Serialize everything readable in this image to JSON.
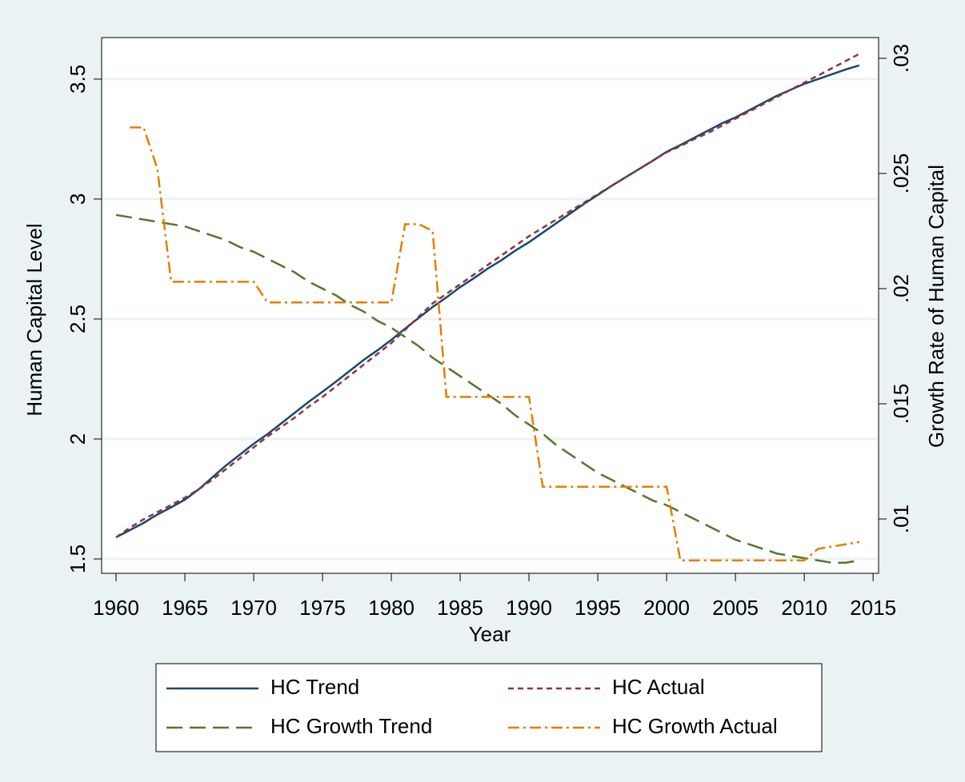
{
  "chart_data": {
    "type": "line",
    "x_label": "Year",
    "y_label": "Human  Capital  Level",
    "y2_label": "Growth  Rate of Human  Capital",
    "x": [
      1960,
      1961,
      1962,
      1963,
      1964,
      1965,
      1966,
      1967,
      1968,
      1969,
      1970,
      1971,
      1972,
      1973,
      1974,
      1975,
      1976,
      1977,
      1978,
      1979,
      1980,
      1981,
      1982,
      1983,
      1984,
      1985,
      1986,
      1987,
      1988,
      1989,
      1990,
      1991,
      1992,
      1993,
      1994,
      1995,
      1996,
      1997,
      1998,
      1999,
      2000,
      2001,
      2002,
      2003,
      2004,
      2005,
      2006,
      2007,
      2008,
      2009,
      2010,
      2011,
      2012,
      2013,
      2014
    ],
    "series": [
      {
        "name": "HC Trend",
        "color": "#1a476f",
        "dash": "solid",
        "axis": "y",
        "values": [
          1.59,
          1.62,
          1.65,
          1.685,
          1.715,
          1.747,
          1.79,
          1.84,
          1.89,
          1.935,
          1.98,
          2.02,
          2.065,
          2.11,
          2.155,
          2.197,
          2.24,
          2.285,
          2.33,
          2.37,
          2.413,
          2.46,
          2.505,
          2.55,
          2.59,
          2.633,
          2.67,
          2.71,
          2.745,
          2.785,
          2.82,
          2.86,
          2.9,
          2.94,
          2.98,
          3.017,
          3.055,
          3.09,
          3.125,
          3.16,
          3.197,
          3.225,
          3.255,
          3.285,
          3.315,
          3.34,
          3.37,
          3.4,
          3.43,
          3.455,
          3.48,
          3.5,
          3.52,
          3.54,
          3.557
        ]
      },
      {
        "name": "HC Actual",
        "color": "#90353b",
        "dash": "short",
        "axis": "y",
        "values": [
          1.59,
          1.63,
          1.665,
          1.695,
          1.725,
          1.755,
          1.79,
          1.83,
          1.875,
          1.92,
          1.965,
          2.01,
          2.05,
          2.09,
          2.135,
          2.175,
          2.22,
          2.265,
          2.31,
          2.355,
          2.4,
          2.455,
          2.51,
          2.565,
          2.605,
          2.645,
          2.685,
          2.725,
          2.765,
          2.805,
          2.845,
          2.88,
          2.915,
          2.95,
          2.985,
          3.02,
          3.055,
          3.09,
          3.125,
          3.16,
          3.195,
          3.22,
          3.25,
          3.275,
          3.305,
          3.335,
          3.365,
          3.395,
          3.425,
          3.455,
          3.485,
          3.515,
          3.545,
          3.575,
          3.605
        ]
      },
      {
        "name": "HC Growth Trend",
        "color": "#55752f",
        "dash": "long",
        "axis": "y2",
        "values": [
          0.0232,
          0.0231,
          0.023,
          0.0229,
          0.0228,
          0.0227,
          0.0225,
          0.0223,
          0.0221,
          0.0218,
          0.0216,
          0.0213,
          0.021,
          0.0207,
          0.0203,
          0.02,
          0.0197,
          0.0193,
          0.019,
          0.0186,
          0.0183,
          0.0179,
          0.0175,
          0.017,
          0.0166,
          0.0162,
          0.0158,
          0.0154,
          0.015,
          0.0145,
          0.0141,
          0.0137,
          0.0132,
          0.0128,
          0.0124,
          0.012,
          0.0117,
          0.0114,
          0.0111,
          0.0108,
          0.0106,
          0.0103,
          0.01,
          0.0097,
          0.0094,
          0.0091,
          0.0089,
          0.0087,
          0.0085,
          0.0084,
          0.0083,
          0.0082,
          0.0081,
          0.0081,
          0.0082
        ]
      },
      {
        "name": "HC Growth Actual",
        "color": "#e37e00",
        "dash": "dashdot",
        "axis": "y2",
        "values": [
          null,
          0.027,
          0.027,
          0.0252,
          0.0203,
          0.0203,
          0.0203,
          0.0203,
          0.0203,
          0.0203,
          0.0203,
          0.0194,
          0.0194,
          0.0194,
          0.0194,
          0.0194,
          0.0194,
          0.0194,
          0.0194,
          0.0194,
          0.0194,
          0.0228,
          0.0228,
          0.0225,
          0.0153,
          0.0153,
          0.0153,
          0.0153,
          0.0153,
          0.0153,
          0.0153,
          0.0114,
          0.0114,
          0.0114,
          0.0114,
          0.0114,
          0.0114,
          0.0114,
          0.0114,
          0.0114,
          0.0114,
          0.0082,
          0.0082,
          0.0082,
          0.0082,
          0.0082,
          0.0082,
          0.0082,
          0.0082,
          0.0082,
          0.0082,
          0.0087,
          0.0088,
          0.0089,
          0.009
        ]
      }
    ],
    "xlim": [
      1958.95,
      2015.4
    ],
    "xticks": [
      1960,
      1965,
      1970,
      1975,
      1980,
      1985,
      1990,
      1995,
      2000,
      2005,
      2010,
      2015
    ],
    "ylim": [
      1.44,
      3.673
    ],
    "yticks": [
      1.5,
      2,
      2.5,
      3,
      3.5
    ],
    "y2lim": [
      0.00764,
      0.0309
    ],
    "y2ticks": [
      {
        "value": 0.01,
        "label": ".01"
      },
      {
        "value": 0.015,
        "label": ".015"
      },
      {
        "value": 0.02,
        "label": ".02"
      },
      {
        "value": 0.025,
        "label": ".025"
      },
      {
        "value": 0.03,
        "label": ".03"
      }
    ],
    "grid": true,
    "legend": "bottom"
  }
}
